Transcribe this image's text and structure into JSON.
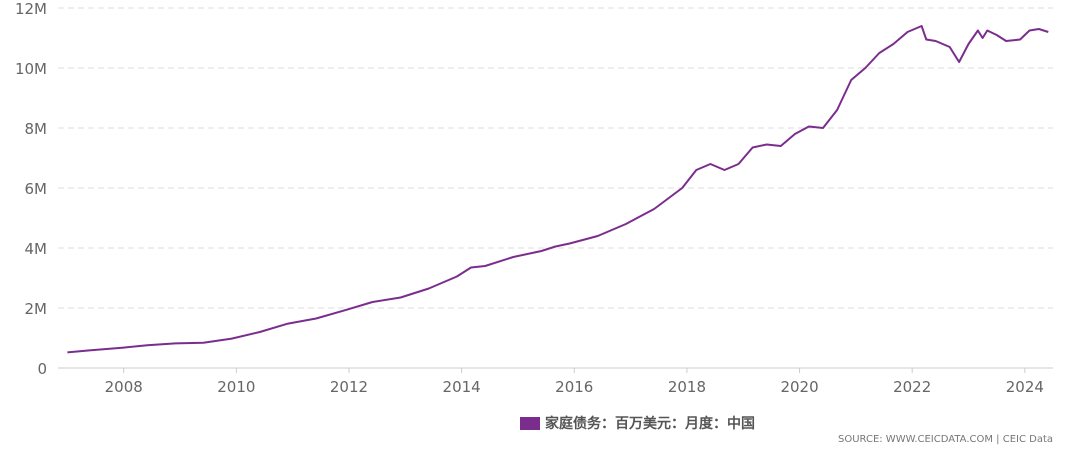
{
  "chart_data": {
    "type": "line",
    "ylim": [
      0,
      12000000
    ],
    "y_ticks": [
      {
        "value": 0,
        "label": "0"
      },
      {
        "value": 2000000,
        "label": "2M"
      },
      {
        "value": 4000000,
        "label": "4M"
      },
      {
        "value": 6000000,
        "label": "6M"
      },
      {
        "value": 8000000,
        "label": "8M"
      },
      {
        "value": 10000000,
        "label": "10M"
      },
      {
        "value": 12000000,
        "label": "12M"
      }
    ],
    "x_ticks": [
      {
        "value": "2008-01",
        "label": "2008"
      },
      {
        "value": "2010-01",
        "label": "2010"
      },
      {
        "value": "2012-01",
        "label": "2012"
      },
      {
        "value": "2014-01",
        "label": "2014"
      },
      {
        "value": "2016-01",
        "label": "2016"
      },
      {
        "value": "2018-01",
        "label": "2018"
      },
      {
        "value": "2020-01",
        "label": "2020"
      },
      {
        "value": "2022-01",
        "label": "2022"
      },
      {
        "value": "2024-01",
        "label": "2024"
      }
    ],
    "xlim": [
      "2006-11",
      "2024-07"
    ],
    "grid": true,
    "legend_position": "bottom",
    "color": "#7b2d8e",
    "series": [
      {
        "name": "家庭债务：百万美元：月度：中国",
        "points": [
          [
            "2007-01",
            520000
          ],
          [
            "2007-06",
            590000
          ],
          [
            "2008-01",
            680000
          ],
          [
            "2008-06",
            760000
          ],
          [
            "2008-12",
            820000
          ],
          [
            "2009-06",
            840000
          ],
          [
            "2009-12",
            980000
          ],
          [
            "2010-06",
            1200000
          ],
          [
            "2010-12",
            1480000
          ],
          [
            "2011-06",
            1650000
          ],
          [
            "2011-12",
            1920000
          ],
          [
            "2012-06",
            2200000
          ],
          [
            "2012-12",
            2350000
          ],
          [
            "2013-06",
            2650000
          ],
          [
            "2013-12",
            3050000
          ],
          [
            "2014-03",
            3350000
          ],
          [
            "2014-06",
            3400000
          ],
          [
            "2014-12",
            3700000
          ],
          [
            "2015-06",
            3900000
          ],
          [
            "2015-09",
            4050000
          ],
          [
            "2015-12",
            4150000
          ],
          [
            "2016-06",
            4400000
          ],
          [
            "2016-12",
            4800000
          ],
          [
            "2017-06",
            5300000
          ],
          [
            "2017-12",
            6000000
          ],
          [
            "2018-03",
            6600000
          ],
          [
            "2018-06",
            6800000
          ],
          [
            "2018-09",
            6600000
          ],
          [
            "2018-12",
            6800000
          ],
          [
            "2019-03",
            7350000
          ],
          [
            "2019-06",
            7450000
          ],
          [
            "2019-09",
            7400000
          ],
          [
            "2019-12",
            7800000
          ],
          [
            "2020-03",
            8050000
          ],
          [
            "2020-06",
            8000000
          ],
          [
            "2020-09",
            8600000
          ],
          [
            "2020-12",
            9600000
          ],
          [
            "2021-03",
            10000000
          ],
          [
            "2021-06",
            10500000
          ],
          [
            "2021-09",
            10800000
          ],
          [
            "2021-12",
            11200000
          ],
          [
            "2022-03",
            11400000
          ],
          [
            "2022-04",
            10950000
          ],
          [
            "2022-06",
            10900000
          ],
          [
            "2022-09",
            10700000
          ],
          [
            "2022-11",
            10200000
          ],
          [
            "2023-01",
            10800000
          ],
          [
            "2023-03",
            11250000
          ],
          [
            "2023-04",
            11000000
          ],
          [
            "2023-05",
            11250000
          ],
          [
            "2023-07",
            11100000
          ],
          [
            "2023-09",
            10900000
          ],
          [
            "2023-12",
            10950000
          ],
          [
            "2024-02",
            11250000
          ],
          [
            "2024-04",
            11300000
          ],
          [
            "2024-06",
            11200000
          ]
        ]
      }
    ]
  },
  "legend": {
    "label": "家庭债务：百万美元：月度：中国"
  },
  "source": "SOURCE: WWW.CEICDATA.COM | CEIC Data"
}
